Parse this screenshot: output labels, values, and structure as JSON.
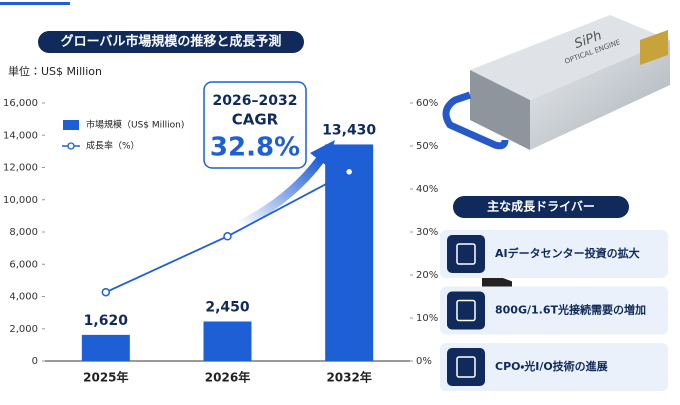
{
  "chart_data": {
    "type": "bar",
    "title": "グローバル市場規模の推移と成長予測",
    "y_label": "単位：US$ Million",
    "categories": [
      "2025年",
      "2026年",
      "2032年"
    ],
    "series": [
      {
        "name": "市場規模（US$ Million)",
        "type": "bar",
        "color": "#1f5fd6",
        "values": [
          1620,
          2450,
          13430
        ],
        "value_labels": [
          "1,620",
          "2,450",
          "13,430"
        ]
      },
      {
        "name": "成長率（%）",
        "type": "line",
        "axis": "y2",
        "color": "#1f5fd6",
        "values": [
          16,
          29,
          44
        ]
      }
    ],
    "ylim": [
      0,
      16000
    ],
    "yticks": [
      0,
      {
        "value": 2000,
        "label": "2,000"
      },
      {
        "value": 4000,
        "label": "4,000"
      },
      {
        "value": 6000,
        "label": "6,000"
      },
      {
        "value": 8000,
        "label": "8,000"
      },
      {
        "value": 10000,
        "label": "10,000"
      },
      {
        "value": 12000,
        "label": "12,000"
      },
      {
        "value": 14000,
        "label": "14,000"
      },
      {
        "value": 16000,
        "label": "16,000"
      }
    ],
    "y2lim": [
      0,
      60
    ],
    "y2ticks": [
      {
        "value": 0,
        "label": "0%"
      },
      {
        "value": 10,
        "label": "10%"
      },
      {
        "value": 20,
        "label": "20%"
      },
      {
        "value": 30,
        "label": "30%"
      },
      {
        "value": 40,
        "label": "40%"
      },
      {
        "value": 50,
        "label": "50%"
      },
      {
        "value": 60,
        "label": "60%"
      }
    ],
    "grid": false,
    "legend": "top-left",
    "annotation": {
      "period": "2026–2032",
      "label": "CAGR",
      "value": "32.8%"
    }
  },
  "sidebar": {
    "product": [
      "SiPh",
      "OPTICAL ENGINE"
    ],
    "drivers_title": "主な成長ドライバー",
    "drivers": [
      "AIデータセンター投資の拡大",
      "800G/1.6T光接続需要の増加",
      "CPO・光I/O技術の進展"
    ]
  }
}
